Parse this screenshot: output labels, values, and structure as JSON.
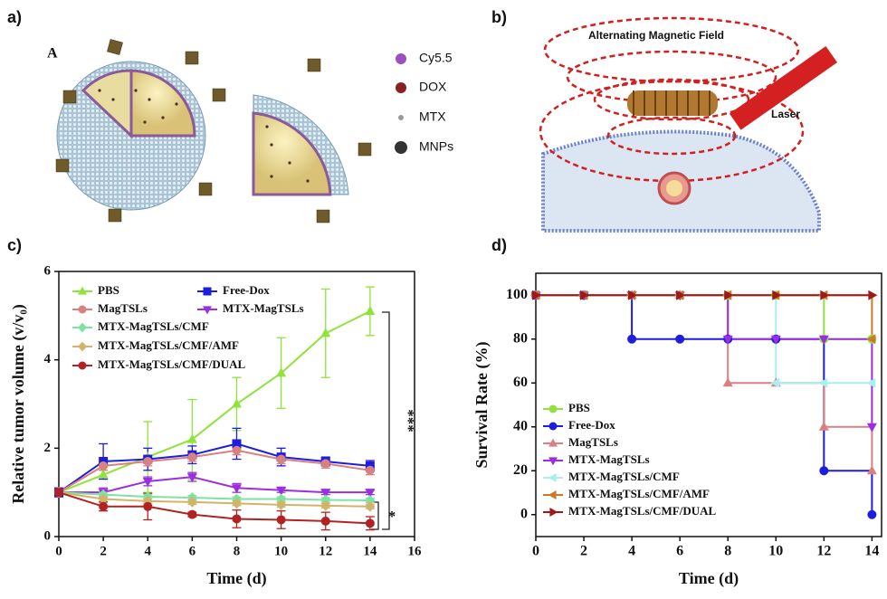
{
  "panel_labels": [
    "a)",
    "b)",
    "c)",
    "d)"
  ],
  "illustration_a": {
    "label": "A",
    "legend": [
      "Cy5.5",
      "DOX",
      "MTX",
      "MNPs"
    ]
  },
  "illustration_b": {
    "field_label": "Alternating Magnetic Field",
    "laser_label": "Laser"
  },
  "chart_data": [
    {
      "type": "line",
      "xlabel": "Time (d)",
      "ylabel": "Relative tumor volume (v/v₀)",
      "x": [
        0,
        2,
        4,
        6,
        8,
        10,
        12,
        14
      ],
      "xlim": [
        0,
        16
      ],
      "xticks": [
        0,
        2,
        4,
        6,
        8,
        10,
        12,
        14,
        16
      ],
      "ylim": [
        0,
        6
      ],
      "yticks": [
        0,
        2,
        4,
        6
      ],
      "annotations": [
        "***",
        "*"
      ],
      "series": [
        {
          "name": "PBS",
          "color": "#8fe33a",
          "marker": "triangle-up",
          "values": [
            1,
            1.4,
            1.8,
            2.2,
            3.0,
            3.7,
            4.6,
            5.1
          ],
          "errors": [
            0.05,
            0.1,
            0.8,
            0.9,
            0.6,
            0.8,
            1.0,
            0.55
          ]
        },
        {
          "name": "Free-Dox",
          "color": "#1d1de0",
          "marker": "square",
          "values": [
            1,
            1.7,
            1.75,
            1.85,
            2.1,
            1.8,
            1.7,
            1.6
          ],
          "errors": [
            0.1,
            0.4,
            0.25,
            0.2,
            0.35,
            0.2,
            0.1,
            0.12
          ]
        },
        {
          "name": "MagTSLs",
          "color": "#d98080",
          "marker": "circle",
          "values": [
            1,
            1.6,
            1.7,
            1.8,
            1.95,
            1.75,
            1.65,
            1.5
          ],
          "errors": [
            0.05,
            0.1,
            0.1,
            0.1,
            0.1,
            0.1,
            0.1,
            0.1
          ]
        },
        {
          "name": "MTX-MagTSLs",
          "color": "#9a2ee0",
          "marker": "triangle-down",
          "values": [
            1,
            1.0,
            1.25,
            1.35,
            1.1,
            1.05,
            1.0,
            1.0
          ],
          "errors": [
            0.05,
            0.1,
            0.1,
            0.1,
            0.1,
            0.05,
            0.05,
            0.05
          ]
        },
        {
          "name": "MTX-MagTSLs/CMF",
          "color": "#7ee2a0",
          "marker": "diamond",
          "values": [
            1,
            0.95,
            0.9,
            0.88,
            0.85,
            0.85,
            0.83,
            0.82
          ],
          "errors": [
            0.05,
            0.05,
            0.05,
            0.05,
            0.05,
            0.05,
            0.05,
            0.05
          ]
        },
        {
          "name": "MTX-MagTSLs/CMF/AMF",
          "color": "#d2b36a",
          "marker": "diamond",
          "values": [
            1,
            0.85,
            0.8,
            0.78,
            0.75,
            0.72,
            0.7,
            0.68
          ],
          "errors": [
            0.05,
            0.05,
            0.05,
            0.05,
            0.05,
            0.05,
            0.05,
            0.05
          ]
        },
        {
          "name": "MTX-MagTSLs/CMF/DUAL",
          "color": "#b22222",
          "marker": "circle",
          "values": [
            1,
            0.68,
            0.68,
            0.5,
            0.4,
            0.38,
            0.35,
            0.3
          ],
          "errors": [
            0.1,
            0.1,
            0.3,
            0.05,
            0.2,
            0.2,
            0.2,
            0.15
          ]
        }
      ]
    },
    {
      "type": "step",
      "xlabel": "Time (d)",
      "ylabel": "Survival Rate (%)",
      "x": [
        0,
        2,
        4,
        6,
        8,
        10,
        12,
        14
      ],
      "xlim": [
        0,
        14.4
      ],
      "xticks": [
        0,
        2,
        4,
        6,
        8,
        10,
        12,
        14
      ],
      "ylim": [
        -10,
        110
      ],
      "yticks": [
        0,
        20,
        40,
        60,
        80,
        100
      ],
      "series": [
        {
          "name": "PBS",
          "color": "#8fe33a",
          "marker": "circle",
          "values": [
            100,
            100,
            100,
            100,
            100,
            100,
            80,
            80
          ]
        },
        {
          "name": "Free-Dox",
          "color": "#1d1de0",
          "marker": "circle",
          "values": [
            100,
            100,
            80,
            80,
            80,
            80,
            20,
            0
          ]
        },
        {
          "name": "MagTSLs",
          "color": "#d98080",
          "marker": "triangle-up",
          "values": [
            100,
            100,
            100,
            100,
            60,
            60,
            40,
            20
          ]
        },
        {
          "name": "MTX-MagTSLs",
          "color": "#9a2ee0",
          "marker": "triangle-down",
          "values": [
            100,
            100,
            100,
            100,
            80,
            80,
            80,
            40
          ]
        },
        {
          "name": "MTX-MagTSLs/CMF",
          "color": "#a8f0f0",
          "marker": "triangle-left",
          "values": [
            100,
            100,
            100,
            100,
            100,
            60,
            60,
            60
          ]
        },
        {
          "name": "MTX-MagTSLs/CMF/AMF",
          "color": "#c87a2a",
          "marker": "triangle-left",
          "values": [
            100,
            100,
            100,
            100,
            100,
            100,
            100,
            80
          ]
        },
        {
          "name": "MTX-MagTSLs/CMF/DUAL",
          "color": "#a01818",
          "marker": "triangle-right",
          "values": [
            100,
            100,
            100,
            100,
            100,
            100,
            100,
            100
          ]
        }
      ]
    }
  ]
}
